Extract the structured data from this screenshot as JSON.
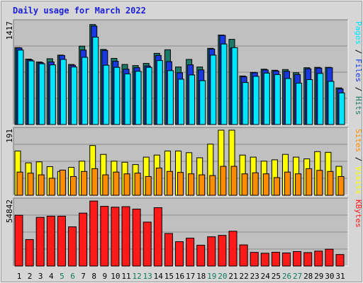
{
  "title": "Daily usage for March 2022",
  "colors": {
    "background": "#d6d6d6",
    "plot_background": "#c0c0c0",
    "grid": "#8c8c8c",
    "title": "#1a1fd8",
    "pages": "#00e6ff",
    "files": "#1838e0",
    "hits": "#1e7a68",
    "visits": "#ffff00",
    "sites": "#ff8c00",
    "kbytes": "#ff1a1a",
    "weekend_label": "#0f7a5e",
    "weekday_label": "#000000"
  },
  "chart_data": [
    {
      "type": "bar",
      "panel": "hits",
      "y_max_label": "1417",
      "legend": [
        {
          "text": "Pages",
          "key": "pages"
        },
        {
          "text": " / ",
          "key": "separator"
        },
        {
          "text": "Files",
          "key": "files"
        },
        {
          "text": " / ",
          "key": "separator"
        },
        {
          "text": "Hits",
          "key": "hits"
        }
      ],
      "ylim": [
        0,
        1417
      ],
      "categories": [
        "1",
        "2",
        "3",
        "4",
        "5",
        "6",
        "7",
        "8",
        "9",
        "10",
        "11",
        "12",
        "13",
        "14",
        "15",
        "16",
        "17",
        "18",
        "19",
        "20",
        "21",
        "22",
        "23",
        "24",
        "25",
        "26",
        "27",
        "28",
        "29",
        "30",
        "31"
      ],
      "weekend_days": [
        "5",
        "6",
        "12",
        "13",
        "19",
        "20",
        "26",
        "27"
      ],
      "series": [
        {
          "name": "Hits",
          "key": "hits",
          "values": [
            1070,
            910,
            870,
            915,
            965,
            835,
            1090,
            1390,
            1045,
            920,
            835,
            820,
            850,
            990,
            1040,
            800,
            905,
            800,
            1060,
            1245,
            1185,
            675,
            725,
            770,
            755,
            765,
            720,
            790,
            795,
            795,
            510
          ]
        },
        {
          "name": "Files",
          "key": "files",
          "values": [
            1065,
            900,
            860,
            870,
            960,
            825,
            1035,
            1370,
            1030,
            880,
            770,
            790,
            815,
            960,
            875,
            720,
            830,
            760,
            1050,
            1240,
            1065,
            665,
            720,
            760,
            745,
            740,
            695,
            775,
            785,
            790,
            495
          ]
        },
        {
          "name": "Pages",
          "key": "pages",
          "values": [
            1035,
            885,
            845,
            830,
            905,
            800,
            935,
            1215,
            825,
            795,
            705,
            740,
            795,
            890,
            750,
            630,
            690,
            610,
            965,
            1120,
            1070,
            585,
            670,
            715,
            695,
            640,
            575,
            625,
            710,
            600,
            440
          ]
        }
      ]
    },
    {
      "type": "bar",
      "panel": "visits",
      "y_max_label": "191",
      "legend": [
        {
          "text": "Sites",
          "key": "sites"
        },
        {
          "text": " / ",
          "key": "separator"
        },
        {
          "text": "Visits",
          "key": "visits"
        }
      ],
      "ylim": [
        0,
        191
      ],
      "series": [
        {
          "name": "Visits",
          "key": "visits",
          "values": [
            130,
            95,
            98,
            84,
            70,
            82,
            100,
            146,
            120,
            100,
            97,
            90,
            112,
            118,
            130,
            130,
            125,
            110,
            150,
            191,
            191,
            118,
            112,
            100,
            104,
            120,
            112,
            107,
            128,
            126,
            85
          ]
        },
        {
          "name": "Sites",
          "key": "sites",
          "values": [
            68,
            65,
            60,
            50,
            74,
            55,
            70,
            78,
            60,
            68,
            63,
            65,
            55,
            80,
            70,
            67,
            63,
            60,
            58,
            85,
            85,
            63,
            66,
            63,
            52,
            68,
            63,
            78,
            73,
            70,
            55
          ]
        }
      ]
    },
    {
      "type": "bar",
      "panel": "kbytes",
      "y_max_label": "54842",
      "legend": [
        {
          "text": "KBytes",
          "key": "kbytes"
        }
      ],
      "ylim": [
        0,
        54842
      ],
      "series": [
        {
          "name": "KBytes",
          "key": "kbytes",
          "values": [
            42800,
            22300,
            41000,
            42000,
            42000,
            33000,
            44600,
            54800,
            50300,
            49600,
            50000,
            48000,
            37000,
            49200,
            27400,
            20500,
            23500,
            17500,
            24600,
            25800,
            29300,
            17800,
            11500,
            10800,
            11600,
            11000,
            12200,
            11300,
            12600,
            14200,
            9700
          ]
        }
      ]
    }
  ]
}
